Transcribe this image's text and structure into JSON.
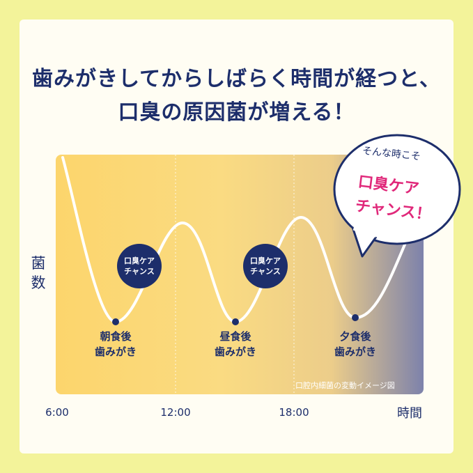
{
  "headline": {
    "line1": "歯みがきしてからしばらく時間が経つと、",
    "line2": "口臭の原因菌が増える！"
  },
  "chart_data": {
    "type": "line",
    "title": "",
    "ylabel": "菌数",
    "xlabel": "時間",
    "x_ticks": [
      "6:00",
      "12:00",
      "18:00"
    ],
    "series": [
      {
        "values": []
      }
    ],
    "annotations": [
      {
        "text": "朝食後\n歯みがき"
      },
      {
        "text": "昼食後\n歯みがき"
      },
      {
        "text": "夕食後\n歯みがき"
      }
    ],
    "badges": [
      "口臭ケア\nチャンス",
      "口臭ケア\nチャンス"
    ],
    "caption": "口腔内細菌の変動イメージ図"
  },
  "markers": {
    "m1": {
      "line1": "朝食後",
      "line2": "歯みがき"
    },
    "m2": {
      "line1": "昼食後",
      "line2": "歯みがき"
    },
    "m3": {
      "line1": "夕食後",
      "line2": "歯みがき"
    }
  },
  "badges": {
    "b1": {
      "line1": "口臭ケア",
      "line2": "チャンス"
    },
    "b2": {
      "line1": "口臭ケア",
      "line2": "チャンス"
    }
  },
  "bubble": {
    "line1": "そんな時こそ",
    "line2": "口臭ケア",
    "line3": "チャンス！"
  },
  "colors": {
    "navy": "#1d2e6b",
    "pink": "#e0287a",
    "yellow_bg": "#f3f39a",
    "gradient_start": "#fcd56c",
    "gradient_end": "#7d82ab"
  }
}
